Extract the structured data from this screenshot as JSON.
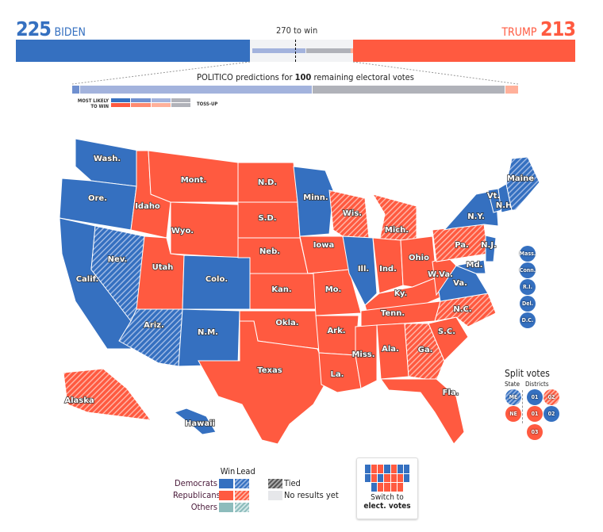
{
  "header": {
    "biden_votes": "225",
    "biden_label": "BIDEN",
    "trump_votes": "213",
    "trump_label": "TRUMP",
    "to_win": "270 to win"
  },
  "predictions": {
    "prefix": "POLITICO predictions for ",
    "count": "100",
    "suffix": " remaining electoral votes",
    "most_likely": "MOST LIKELY",
    "to_win": "TO WIN",
    "toss_up": "TOSS-UP"
  },
  "colors": {
    "dem": "#3570c0",
    "rep": "#ff5a40",
    "other": "#8dbcbc",
    "none": "#e6e7ea"
  },
  "states": {
    "wa": {
      "label": "Wash.",
      "status": "dem-win"
    },
    "or": {
      "label": "Ore.",
      "status": "dem-win"
    },
    "ca": {
      "label": "Calif.",
      "status": "dem-win"
    },
    "nv": {
      "label": "Nev.",
      "status": "dem-lead"
    },
    "id": {
      "label": "Idaho",
      "status": "rep-win"
    },
    "mt": {
      "label": "Mont.",
      "status": "rep-win"
    },
    "wy": {
      "label": "Wyo.",
      "status": "rep-win"
    },
    "ut": {
      "label": "Utah",
      "status": "rep-win"
    },
    "co": {
      "label": "Colo.",
      "status": "dem-win"
    },
    "az": {
      "label": "Ariz.",
      "status": "dem-lead"
    },
    "nm": {
      "label": "N.M.",
      "status": "dem-win"
    },
    "nd": {
      "label": "N.D.",
      "status": "rep-win"
    },
    "sd": {
      "label": "S.D.",
      "status": "rep-win"
    },
    "ne": {
      "label": "Neb.",
      "status": "rep-win"
    },
    "ks": {
      "label": "Kan.",
      "status": "rep-win"
    },
    "ok": {
      "label": "Okla.",
      "status": "rep-win"
    },
    "tx": {
      "label": "Texas",
      "status": "rep-win"
    },
    "mn": {
      "label": "Minn.",
      "status": "dem-win"
    },
    "ia": {
      "label": "Iowa",
      "status": "rep-win"
    },
    "mo": {
      "label": "Mo.",
      "status": "rep-win"
    },
    "ar": {
      "label": "Ark.",
      "status": "rep-win"
    },
    "la": {
      "label": "La.",
      "status": "rep-win"
    },
    "wi": {
      "label": "Wis.",
      "status": "rep-lead"
    },
    "il": {
      "label": "Ill.",
      "status": "dem-win"
    },
    "mi": {
      "label": "Mich.",
      "status": "rep-lead"
    },
    "in": {
      "label": "Ind.",
      "status": "rep-win"
    },
    "oh": {
      "label": "Ohio",
      "status": "rep-win"
    },
    "ky": {
      "label": "Ky.",
      "status": "rep-win"
    },
    "tn": {
      "label": "Tenn.",
      "status": "rep-win"
    },
    "ms": {
      "label": "Miss.",
      "status": "rep-win"
    },
    "al": {
      "label": "Ala.",
      "status": "rep-win"
    },
    "ga": {
      "label": "Ga.",
      "status": "rep-lead"
    },
    "fl": {
      "label": "Fla.",
      "status": "rep-win"
    },
    "sc": {
      "label": "S.C.",
      "status": "rep-win"
    },
    "nc": {
      "label": "N.C.",
      "status": "rep-lead"
    },
    "va": {
      "label": "Va.",
      "status": "dem-win"
    },
    "wv": {
      "label": "W.Va.",
      "status": "rep-win"
    },
    "pa": {
      "label": "Pa.",
      "status": "rep-lead"
    },
    "ny": {
      "label": "N.Y.",
      "status": "dem-win"
    },
    "vt": {
      "label": "Vt.",
      "status": "dem-win"
    },
    "nh": {
      "label": "N.H.",
      "status": "dem-win"
    },
    "me": {
      "label": "Maine",
      "status": "dem-lead"
    },
    "md": {
      "label": "Md.",
      "status": "dem-win"
    },
    "nj": {
      "label": "N.J.",
      "status": "dem-win"
    },
    "ak": {
      "label": "Alaska",
      "status": "rep-lead"
    },
    "hi": {
      "label": "Hawaii",
      "status": "dem-win"
    }
  },
  "small_states": [
    "Mass.",
    "Conn.",
    "R.I.",
    "Del.",
    "D.C."
  ],
  "split_votes": {
    "title": "Split votes",
    "state_label": "State",
    "districts_label": "Districts",
    "me": "ME",
    "ne": "NE",
    "me1": "01",
    "me2": "02",
    "ne1": "01",
    "ne2": "02",
    "ne3": "03"
  },
  "legend": {
    "win": "Win",
    "lead": "Lead",
    "democrats": "Democrats",
    "republicans": "Republicans",
    "others": "Others",
    "tied": "Tied",
    "no_results": "No results yet"
  },
  "switch_button": {
    "line1": "Switch to",
    "line2": "elect. votes"
  }
}
